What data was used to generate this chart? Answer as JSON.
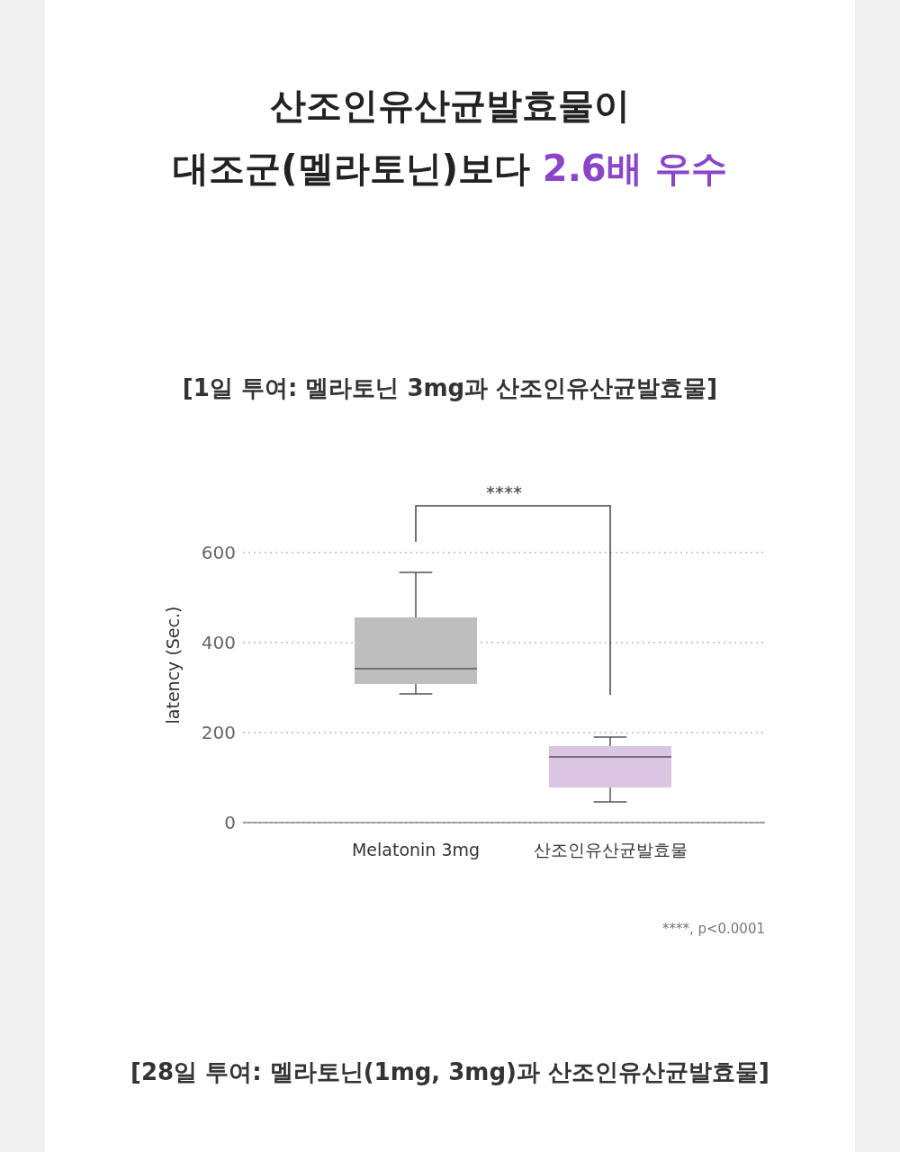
{
  "chart_data": {
    "type": "box",
    "title": "산조인유산균발효물이\n대조군(멜라토닌)보다 2.6배 우수",
    "subtitle": "[1일 투여: 멜라토닌 3mg과 산조인유산균발효물]",
    "ylabel": "latency (Sec.)",
    "categories": [
      "Melatonin 3mg",
      "산조인유산균발효물"
    ],
    "boxes": [
      {
        "low": 286,
        "q1": 308,
        "median": 342,
        "q3": 456,
        "high": 556
      },
      {
        "low": 46,
        "q1": 78,
        "median": 146,
        "q3": 170,
        "high": 190
      }
    ],
    "colors": [
      "#bebebe",
      "#dcc5e3"
    ],
    "ylim": [
      0,
      700
    ],
    "yticks": [
      0,
      200,
      400,
      600
    ],
    "grid": "y",
    "annotations": [
      "****",
      "****, p<0.0001",
      "[28일 투여: 멜라토닌(1mg, 3mg)과 산조인유산균발효물]"
    ]
  }
}
